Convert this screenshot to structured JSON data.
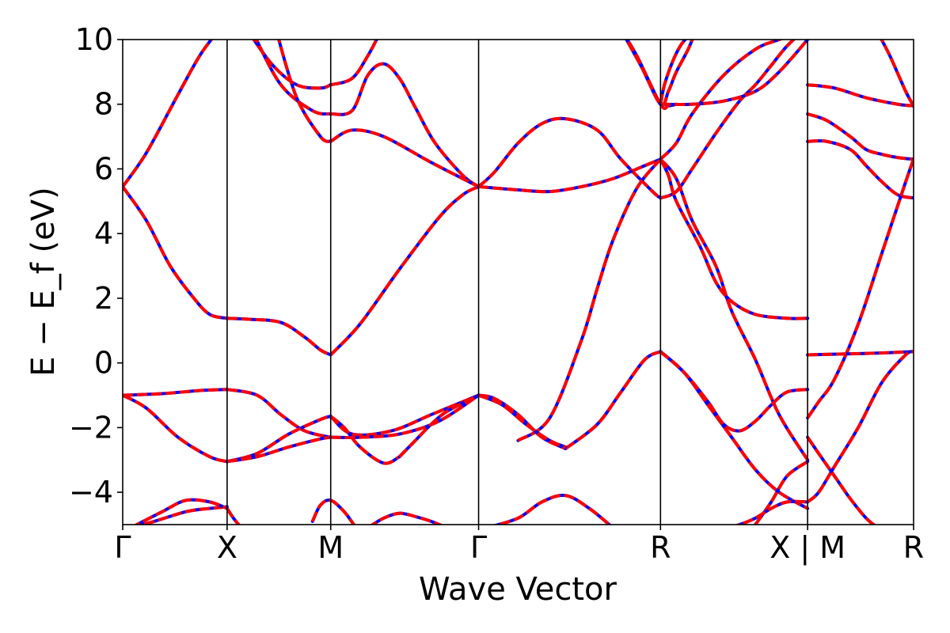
{
  "chart_data": {
    "type": "line",
    "xlabel": "Wave Vector",
    "ylabel": "E − E_f (eV)",
    "ylim": [
      -5,
      10
    ],
    "y_ticks": [
      -4,
      -2,
      0,
      2,
      4,
      6,
      8,
      10
    ],
    "y_tick_labels": [
      "−4",
      "−2",
      "0",
      "2",
      "4",
      "6",
      "8",
      "10"
    ],
    "x_range": [
      0,
      1
    ],
    "k_points": [
      {
        "label": "Γ",
        "x": 0.0
      },
      {
        "label": "X",
        "x": 0.132
      },
      {
        "label": "M",
        "x": 0.263
      },
      {
        "label": "Γ",
        "x": 0.45
      },
      {
        "label": "R",
        "x": 0.68
      },
      {
        "label": "X | M",
        "x": 0.866
      },
      {
        "label": "R",
        "x": 1.0
      }
    ],
    "grid": false,
    "series_style": {
      "solid_color": "#0000ff",
      "dashed_color": "#ff0000"
    },
    "bands": [
      {
        "x": [
          0,
          0.03,
          0.07,
          0.1,
          0.132
        ],
        "y": [
          5.45,
          6.5,
          8.3,
          9.6,
          10.6
        ]
      },
      {
        "x": [
          0,
          0.03,
          0.06,
          0.09,
          0.11,
          0.132
        ],
        "y": [
          5.45,
          4.4,
          3.0,
          2.0,
          1.5,
          1.38
        ]
      },
      {
        "x": [
          0.132,
          0.16,
          0.2,
          0.23,
          0.25,
          0.263
        ],
        "y": [
          1.38,
          1.35,
          1.25,
          0.8,
          0.4,
          0.25
        ]
      },
      {
        "x": [
          0.263,
          0.3,
          0.35,
          0.4,
          0.43,
          0.45
        ],
        "y": [
          0.25,
          1.2,
          2.9,
          4.5,
          5.2,
          5.45
        ]
      },
      {
        "x": [
          0.16,
          0.19,
          0.22,
          0.25,
          0.263
        ],
        "y": [
          10.2,
          9.2,
          8.6,
          8.5,
          8.6
        ]
      },
      {
        "x": [
          0.263,
          0.29,
          0.31,
          0.325
        ],
        "y": [
          8.6,
          8.8,
          9.5,
          10.2
        ]
      },
      {
        "x": [
          0.165,
          0.2,
          0.24,
          0.263
        ],
        "y": [
          10.2,
          8.6,
          7.8,
          7.7
        ]
      },
      {
        "x": [
          0.263,
          0.29,
          0.31,
          0.33,
          0.35,
          0.37,
          0.395,
          0.43,
          0.45
        ],
        "y": [
          7.7,
          7.8,
          8.9,
          9.25,
          8.8,
          7.9,
          6.8,
          5.8,
          5.45
        ]
      },
      {
        "x": [
          0.195,
          0.22,
          0.25,
          0.263
        ],
        "y": [
          10.2,
          8.2,
          7.0,
          6.85
        ]
      },
      {
        "x": [
          0.263,
          0.29,
          0.33,
          0.39,
          0.45
        ],
        "y": [
          6.85,
          7.2,
          7.0,
          6.2,
          5.45
        ]
      },
      {
        "x": [
          0.45,
          0.47,
          0.5,
          0.53,
          0.56,
          0.6,
          0.63,
          0.67,
          0.68
        ],
        "y": [
          5.45,
          5.9,
          6.8,
          7.4,
          7.55,
          7.2,
          6.3,
          5.3,
          5.1
        ]
      },
      {
        "x": [
          0.68,
          0.7,
          0.72,
          0.75,
          0.78,
          0.8,
          0.82,
          0.84,
          0.866
        ],
        "y": [
          5.1,
          5.3,
          6.0,
          7.1,
          8.1,
          8.6,
          9.2,
          9.8,
          10.4
        ]
      },
      {
        "x": [
          0.45,
          0.5,
          0.54,
          0.58,
          0.62,
          0.66,
          0.68
        ],
        "y": [
          5.45,
          5.35,
          5.3,
          5.45,
          5.7,
          6.1,
          6.3
        ]
      },
      {
        "x": [
          0.68,
          0.7,
          0.72,
          0.76,
          0.8,
          0.83,
          0.866
        ],
        "y": [
          6.3,
          6.8,
          7.7,
          8.9,
          9.7,
          10.0,
          10.3
        ]
      },
      {
        "x": [
          0.5,
          0.54,
          0.58,
          0.6,
          0.62,
          0.65,
          0.68
        ],
        "y": [
          -2.4,
          -1.7,
          0.7,
          2.3,
          3.8,
          5.4,
          6.3
        ]
      },
      {
        "x": [
          0.68,
          0.69,
          0.7,
          0.73,
          0.75,
          0.77,
          0.8,
          0.84,
          0.866
        ],
        "y": [
          6.3,
          5.8,
          5.0,
          3.6,
          2.5,
          1.9,
          1.5,
          1.38,
          1.38
        ]
      },
      {
        "x": [
          0.68,
          0.7,
          0.72,
          0.75,
          0.77,
          0.8,
          0.83,
          0.866
        ],
        "y": [
          6.3,
          5.7,
          4.4,
          3.0,
          1.6,
          0.1,
          -1.6,
          -3.0
        ]
      },
      {
        "x": [
          0.63,
          0.65,
          0.68,
          0.69,
          0.7
        ],
        "y": [
          10.3,
          9.5,
          8.0,
          7.95,
          8.0
        ]
      },
      {
        "x": [
          0.68,
          0.72,
          0.76,
          0.8,
          0.83,
          0.866
        ],
        "y": [
          8.0,
          8.0,
          8.1,
          8.4,
          9.0,
          10.0
        ]
      },
      {
        "x": [
          0.63,
          0.655,
          0.68,
          0.69,
          0.7,
          0.715,
          0.725
        ],
        "y": [
          10.3,
          9.2,
          8.0,
          8.4,
          9.0,
          9.7,
          10.3
        ]
      },
      {
        "x": [
          0.68,
          0.685,
          0.695,
          0.705,
          0.715,
          0.725
        ],
        "y": [
          8.0,
          8.6,
          9.3,
          9.8,
          10.1,
          10.3
        ]
      },
      {
        "x": [
          0,
          0.05,
          0.1,
          0.132
        ],
        "y": [
          -1.0,
          -0.95,
          -0.85,
          -0.82
        ]
      },
      {
        "x": [
          0.132,
          0.17,
          0.2,
          0.23,
          0.263
        ],
        "y": [
          -0.82,
          -1.0,
          -1.6,
          -2.1,
          -2.3
        ]
      },
      {
        "x": [
          0,
          0.03,
          0.07,
          0.11,
          0.132
        ],
        "y": [
          -1.0,
          -1.4,
          -2.3,
          -2.9,
          -3.05
        ]
      },
      {
        "x": [
          0.132,
          0.17,
          0.21,
          0.25,
          0.263
        ],
        "y": [
          -3.05,
          -2.8,
          -2.2,
          -1.75,
          -1.65
        ]
      },
      {
        "x": [
          0.132,
          0.17,
          0.21,
          0.25,
          0.263
        ],
        "y": [
          -3.05,
          -2.9,
          -2.6,
          -2.35,
          -2.3
        ]
      },
      {
        "x": [
          0.263,
          0.29,
          0.34,
          0.39,
          0.43,
          0.45
        ],
        "y": [
          -1.65,
          -2.2,
          -2.1,
          -1.6,
          -1.2,
          -1.0
        ]
      },
      {
        "x": [
          0.263,
          0.3,
          0.35,
          0.4,
          0.45
        ],
        "y": [
          -2.3,
          -2.3,
          -2.2,
          -1.8,
          -1.0
        ]
      },
      {
        "x": [
          0.263,
          0.28,
          0.3,
          0.33,
          0.35
        ],
        "y": [
          -1.65,
          -2.0,
          -2.6,
          -3.1,
          -2.9
        ]
      },
      {
        "x": [
          0.35,
          0.37,
          0.39,
          0.41,
          0.45
        ],
        "y": [
          -2.9,
          -2.4,
          -1.9,
          -1.5,
          -1.0
        ]
      },
      {
        "x": [
          0.45,
          0.47,
          0.5,
          0.53,
          0.56
        ],
        "y": [
          -1.0,
          -1.1,
          -1.6,
          -2.3,
          -2.65
        ]
      },
      {
        "x": [
          0.56,
          0.6,
          0.63,
          0.66,
          0.68
        ],
        "y": [
          -2.65,
          -1.9,
          -0.9,
          0.1,
          0.35
        ]
      },
      {
        "x": [
          0.45,
          0.48,
          0.51,
          0.54,
          0.56
        ],
        "y": [
          -1.0,
          -1.3,
          -1.9,
          -2.4,
          -2.6
        ]
      },
      {
        "x": [
          0.68,
          0.71,
          0.74,
          0.77,
          0.8,
          0.83,
          0.866
        ],
        "y": [
          0.35,
          -0.3,
          -1.3,
          -2.3,
          -3.3,
          -4.0,
          -4.5
        ]
      },
      {
        "x": [
          0.68,
          0.71,
          0.74,
          0.76,
          0.78,
          0.8,
          0.82,
          0.84,
          0.866
        ],
        "y": [
          0.35,
          -0.3,
          -1.2,
          -1.9,
          -2.1,
          -1.8,
          -1.3,
          -0.9,
          -0.82
        ]
      },
      {
        "x": [
          0.8,
          0.82,
          0.84,
          0.866
        ],
        "y": [
          -5.0,
          -4.3,
          -3.5,
          -3.05
        ]
      },
      {
        "x": [
          0.75,
          0.78,
          0.8,
          0.82,
          0.84,
          0.866
        ],
        "y": [
          -5.2,
          -5.0,
          -4.8,
          -4.5,
          -4.3,
          -4.3
        ]
      },
      {
        "x": [
          0.01,
          0.04,
          0.08,
          0.11,
          0.132
        ],
        "y": [
          -5.1,
          -4.9,
          -4.6,
          -4.5,
          -4.45
        ]
      },
      {
        "x": [
          0.01,
          0.05,
          0.08,
          0.11,
          0.132
        ],
        "y": [
          -5.1,
          -4.6,
          -4.25,
          -4.3,
          -4.5
        ]
      },
      {
        "x": [
          0.132,
          0.14,
          0.15
        ],
        "y": [
          -4.5,
          -4.8,
          -5.1
        ]
      },
      {
        "x": [
          0.24,
          0.25,
          0.263,
          0.28,
          0.295
        ],
        "y": [
          -4.9,
          -4.4,
          -4.25,
          -4.6,
          -5.1
        ]
      },
      {
        "x": [
          0.31,
          0.33,
          0.35,
          0.37,
          0.39,
          0.41
        ],
        "y": [
          -5.1,
          -4.8,
          -4.65,
          -4.75,
          -4.9,
          -5.1
        ]
      },
      {
        "x": [
          0.46,
          0.5,
          0.53,
          0.56,
          0.59,
          0.62
        ],
        "y": [
          -5.1,
          -4.8,
          -4.3,
          -4.1,
          -4.5,
          -5.1
        ]
      },
      {
        "x": [
          0.866,
          0.9,
          0.94,
          0.98,
          1.0
        ],
        "y": [
          8.6,
          8.5,
          8.2,
          8.0,
          7.95
        ]
      },
      {
        "x": [
          0.866,
          0.89,
          0.92,
          0.94,
          0.96,
          0.98,
          1.0
        ],
        "y": [
          7.7,
          7.5,
          7.0,
          6.6,
          6.45,
          6.35,
          6.3
        ]
      },
      {
        "x": [
          0.866,
          0.89,
          0.92,
          0.94,
          0.96,
          0.98,
          1.0
        ],
        "y": [
          6.85,
          6.85,
          6.6,
          6.1,
          5.6,
          5.2,
          5.1
        ]
      },
      {
        "x": [
          0.866,
          0.88,
          0.9,
          0.93,
          0.96,
          0.99,
          1.0
        ],
        "y": [
          -1.7,
          -1.2,
          -0.5,
          1.2,
          3.4,
          5.6,
          6.3
        ]
      },
      {
        "x": [
          0.866,
          0.9,
          0.95,
          1.0
        ],
        "y": [
          0.25,
          0.27,
          0.3,
          0.35
        ]
      },
      {
        "x": [
          0.866,
          0.88,
          0.9,
          0.93,
          0.96,
          0.99,
          1.0
        ],
        "y": [
          -4.3,
          -4.0,
          -3.2,
          -2.0,
          -0.6,
          0.25,
          0.35
        ]
      },
      {
        "x": [
          0.866,
          0.88,
          0.9,
          0.92,
          0.94,
          0.955
        ],
        "y": [
          -2.3,
          -2.8,
          -3.5,
          -4.2,
          -4.8,
          -5.1
        ]
      },
      {
        "x": [
          0.955,
          0.97,
          0.99,
          1.0
        ],
        "y": [
          10.2,
          9.5,
          8.4,
          7.95
        ]
      }
    ]
  }
}
